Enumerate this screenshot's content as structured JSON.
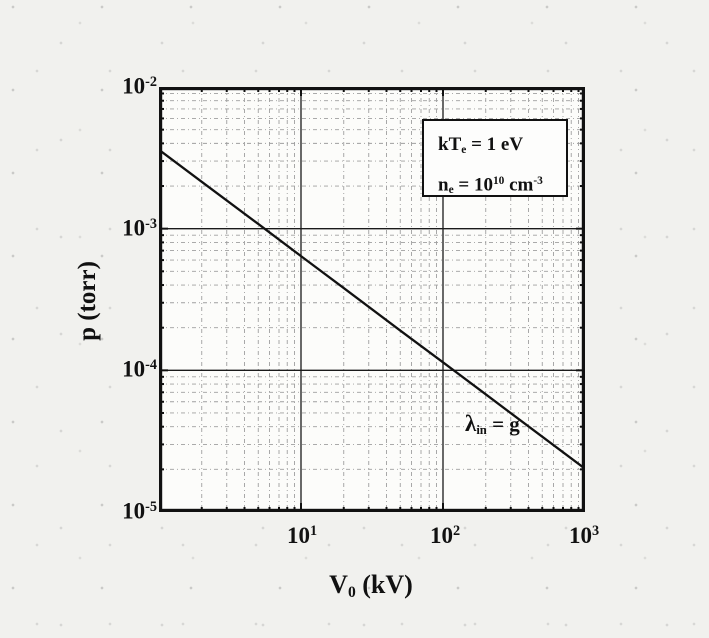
{
  "axes": {
    "x": {
      "title": {
        "main": "V",
        "sub": "0",
        "unit": " (kV)"
      },
      "ticks": [
        {
          "base": "10",
          "exp": "1"
        },
        {
          "base": "10",
          "exp": "2"
        },
        {
          "base": "10",
          "exp": "3"
        }
      ]
    },
    "y": {
      "title": "p (torr)",
      "ticks": [
        {
          "base": "10",
          "exp": "-2"
        },
        {
          "base": "10",
          "exp": "-3"
        },
        {
          "base": "10",
          "exp": "-4"
        },
        {
          "base": "10",
          "exp": "-5"
        }
      ]
    }
  },
  "annotation_box": {
    "kTe": {
      "pre": "kT",
      "sub": "e",
      "post": " = 1 eV"
    },
    "ne": {
      "pre": "n",
      "sub": "e",
      "mid": " = 10",
      "sup1": "10",
      "mid2": " cm",
      "sup2": "-3"
    }
  },
  "curve_label": {
    "symbol": "λ",
    "sub": "in",
    "rest": " = g"
  },
  "colors": {
    "ink": "#111111",
    "grid_major": "#1a1a1a",
    "grid_minor": "#9f9f9f",
    "page_bg": "#f1f1ee",
    "plot_bg": "#fcfcfa"
  },
  "chart_data": {
    "type": "line",
    "title": "",
    "xlabel": "V0 (kV)",
    "ylabel": "p (torr)",
    "x_scale": "log",
    "y_scale": "log",
    "xlim": [
      1,
      1000
    ],
    "ylim": [
      1e-05,
      0.01
    ],
    "x_tick_labels": [
      "10^1",
      "10^2",
      "10^3"
    ],
    "y_tick_labels": [
      "10^-2",
      "10^-3",
      "10^-4",
      "10^-5"
    ],
    "grid": {
      "major": "solid black at each decade",
      "minor": "gray dash-dot at mantissas 2-9"
    },
    "legend": "none",
    "series": [
      {
        "name": "lambda_in = g",
        "relation": "p = 3.6e-3 * V^(-3/4) torr",
        "x": [
          1,
          2,
          5,
          10,
          20,
          50,
          100,
          200,
          500,
          1000
        ],
        "y": [
          0.0036,
          0.00214,
          0.00108,
          0.00064,
          0.000381,
          0.000191,
          0.000114,
          6.77e-05,
          3.4e-05,
          2.02e-05
        ]
      }
    ],
    "annotations": [
      "kT_e = 1 eV",
      "n_e = 10^10 cm^-3",
      "lambda_in = g"
    ]
  }
}
